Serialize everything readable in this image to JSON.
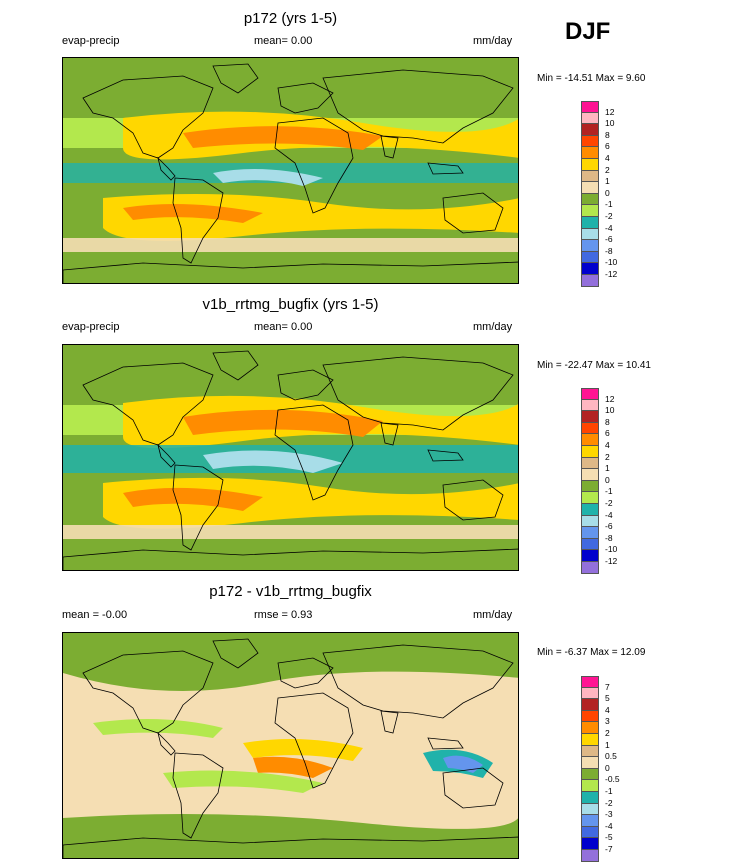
{
  "season": "DJF",
  "panels": [
    {
      "title": "p172 (yrs 1-5)",
      "left_label": "evap-precip",
      "mid_label": "mean=   0.00",
      "right_label": "mm/day",
      "minmax": "Min = -14.51 Max =   9.60",
      "colorbar": {
        "colors": [
          "#ff1493",
          "#ffb6c1",
          "#b22222",
          "#ff4500",
          "#ff8c00",
          "#ffd700",
          "#deb887",
          "#f5deb3",
          "#7cad32",
          "#b3e84d",
          "#20b2aa",
          "#a8dde8",
          "#6495ed",
          "#4169e1",
          "#0000cd",
          "#9370db"
        ],
        "labels": [
          "12",
          "10",
          "8",
          "6",
          "4",
          "2",
          "1",
          "0",
          "-1",
          "-2",
          "-4",
          "-6",
          "-8",
          "-10",
          "-12"
        ]
      }
    },
    {
      "title": "v1b_rrtmg_bugfix (yrs 1-5)",
      "left_label": "evap-precip",
      "mid_label": "mean=   0.00",
      "right_label": "mm/day",
      "minmax": "Min = -22.47 Max =  10.41",
      "colorbar": {
        "colors": [
          "#ff1493",
          "#ffb6c1",
          "#b22222",
          "#ff4500",
          "#ff8c00",
          "#ffd700",
          "#deb887",
          "#f5deb3",
          "#7cad32",
          "#b3e84d",
          "#20b2aa",
          "#a8dde8",
          "#6495ed",
          "#4169e1",
          "#0000cd",
          "#9370db"
        ],
        "labels": [
          "12",
          "10",
          "8",
          "6",
          "4",
          "2",
          "1",
          "0",
          "-1",
          "-2",
          "-4",
          "-6",
          "-8",
          "-10",
          "-12"
        ]
      }
    },
    {
      "title": "p172 - v1b_rrtmg_bugfix",
      "left_label": "mean =  -0.00",
      "mid_label": "rmse =   0.93",
      "right_label": "mm/day",
      "minmax": "Min =  -6.37 Max =  12.09",
      "colorbar": {
        "colors": [
          "#ff1493",
          "#ffb6c1",
          "#b22222",
          "#ff4500",
          "#ff8c00",
          "#ffd700",
          "#deb887",
          "#f5deb3",
          "#7cad32",
          "#b3e84d",
          "#20b2aa",
          "#a8dde8",
          "#6495ed",
          "#4169e1",
          "#0000cd",
          "#9370db"
        ],
        "labels": [
          "7",
          "5",
          "4",
          "3",
          "2",
          "1",
          "0.5",
          "0",
          "-0.5",
          "-1",
          "-2",
          "-3",
          "-4",
          "-5",
          "-7"
        ]
      }
    }
  ]
}
